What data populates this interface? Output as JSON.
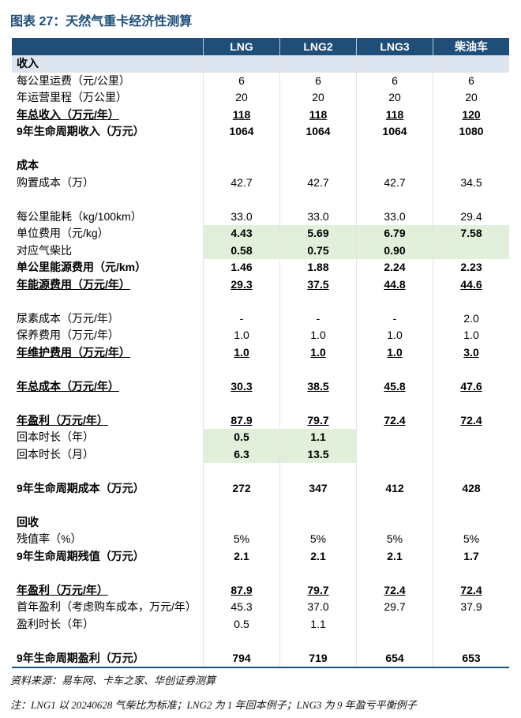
{
  "title": "图表 27：天然气重卡经济性测算",
  "colors": {
    "header_bg": "#1f4e79",
    "title_text": "#1f4e79",
    "highlight_green": "#e2efda",
    "section_band": "#dde5f0"
  },
  "table": {
    "columns": [
      "LNG",
      "LNG2",
      "LNG3",
      "柴油车"
    ],
    "sections": [
      {
        "title": "收入",
        "rows": [
          {
            "label": "每公里运费（元/公里）",
            "values": [
              "6",
              "6",
              "6",
              "6"
            ]
          },
          {
            "label": "年运营里程（万公里）",
            "values": [
              "20",
              "20",
              "20",
              "20"
            ]
          },
          {
            "label": "年总收入（万元/年）",
            "values": [
              "118",
              "118",
              "118",
              "120"
            ]
          },
          {
            "label": "9年生命周期收入（万元）",
            "values": [
              "1064",
              "1064",
              "1064",
              "1080"
            ]
          }
        ]
      },
      {
        "title": "成本",
        "rows": [
          {
            "label": "购置成本（万）",
            "values": [
              "42.7",
              "42.7",
              "42.7",
              "34.5"
            ]
          },
          {
            "label": "每公里能耗（kg/100km）",
            "values": [
              "33.0",
              "33.0",
              "33.0",
              "29.4"
            ]
          },
          {
            "label": "单位费用（元/kg）",
            "values": [
              "4.43",
              "5.69",
              "6.79",
              "7.58"
            ]
          },
          {
            "label": "对应气柴比",
            "values": [
              "0.58",
              "0.75",
              "0.90"
            ]
          },
          {
            "label": "单公里能源费用（元/km）",
            "values": [
              "1.46",
              "1.88",
              "2.24",
              "2.23"
            ]
          },
          {
            "label": "年能源费用（万元/年）",
            "values": [
              "29.3",
              "37.5",
              "44.8",
              "44.6"
            ]
          },
          {
            "label": "尿素成本（万元/年）",
            "values": [
              "-",
              "-",
              "-",
              "2.0"
            ]
          },
          {
            "label": "保养费用（万元/年）",
            "values": [
              "1.0",
              "1.0",
              "1.0",
              "1.0"
            ]
          },
          {
            "label": "年维护费用（万元/年）",
            "values": [
              "1.0",
              "1.0",
              "1.0",
              "3.0"
            ]
          },
          {
            "label": "年总成本（万元/年）",
            "values": [
              "30.3",
              "38.5",
              "45.8",
              "47.6"
            ]
          },
          {
            "label": "年盈利（万元/年）",
            "values": [
              "87.9",
              "79.7",
              "72.4",
              "72.4"
            ]
          },
          {
            "label": "回本时长（年）",
            "values": [
              "0.5",
              "1.1"
            ]
          },
          {
            "label": "回本时长（月）",
            "values": [
              "6.3",
              "13.5"
            ]
          },
          {
            "label": "9年生命周期成本（万元）",
            "values": [
              "272",
              "347",
              "412",
              "428"
            ]
          }
        ]
      },
      {
        "title": "回收",
        "rows": [
          {
            "label": "残值率（%）",
            "values": [
              "5%",
              "5%",
              "5%",
              "5%"
            ]
          },
          {
            "label": "9年生命周期残值（万元）",
            "values": [
              "2.1",
              "2.1",
              "2.1",
              "1.7"
            ]
          },
          {
            "label": "年盈利（万元/年）",
            "values": [
              "87.9",
              "79.7",
              "72.4",
              "72.4"
            ]
          },
          {
            "label": "首年盈利（考虑购车成本，万元/年）",
            "values": [
              "45.3",
              "37.0",
              "29.7",
              "37.9"
            ]
          },
          {
            "label": "盈利时长（年）",
            "values": [
              "0.5",
              "1.1"
            ]
          },
          {
            "label": "9年生命周期盈利（万元）",
            "values": [
              "794",
              "719",
              "654",
              "653"
            ]
          }
        ]
      }
    ]
  },
  "source": "资料来源：易车网、卡车之家、华创证券测算",
  "note": "注：LNG1 以 20240628 气柴比为标准；LNG2 为 1 年回本例子；LNG3 为 9 年盈亏平衡例子"
}
